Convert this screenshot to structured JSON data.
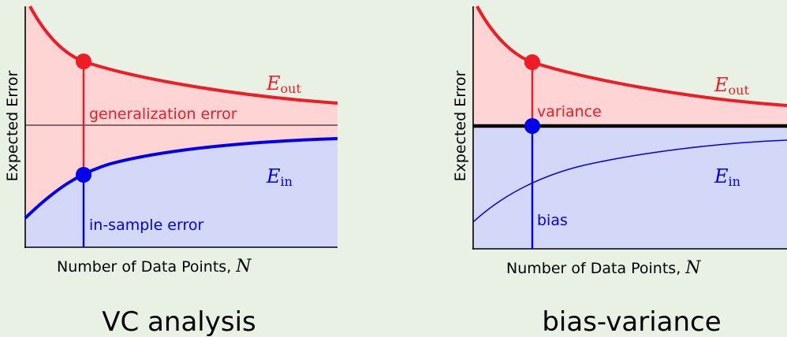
{
  "panels": [
    {
      "caption": "VC analysis",
      "ylabel": "Expected Error",
      "xlabel_text": "Number of Data Points, ",
      "xlabel_var": "N",
      "upper_curve_label": {
        "base": "E",
        "sub": "out"
      },
      "lower_curve_label": {
        "base": "E",
        "sub": "in"
      },
      "upper_segment_label": "generalization error",
      "lower_segment_label": "in-sample error"
    },
    {
      "caption": "bias-variance",
      "ylabel": "Expected Error",
      "xlabel_text": "Number of Data Points, ",
      "xlabel_var": "N",
      "upper_curve_label": {
        "base": "E",
        "sub": "out"
      },
      "lower_curve_label": {
        "base": "E",
        "sub": "in"
      },
      "upper_segment_label": "variance",
      "lower_segment_label": "bias"
    }
  ],
  "colors": {
    "background": "#e9f0e4",
    "out_curve": "#ee1c24",
    "in_curve": "#0000ee",
    "out_fill": "#ffd4d4",
    "in_fill": "#d4d8f8",
    "axis": "#000000",
    "text": "#000000"
  }
}
